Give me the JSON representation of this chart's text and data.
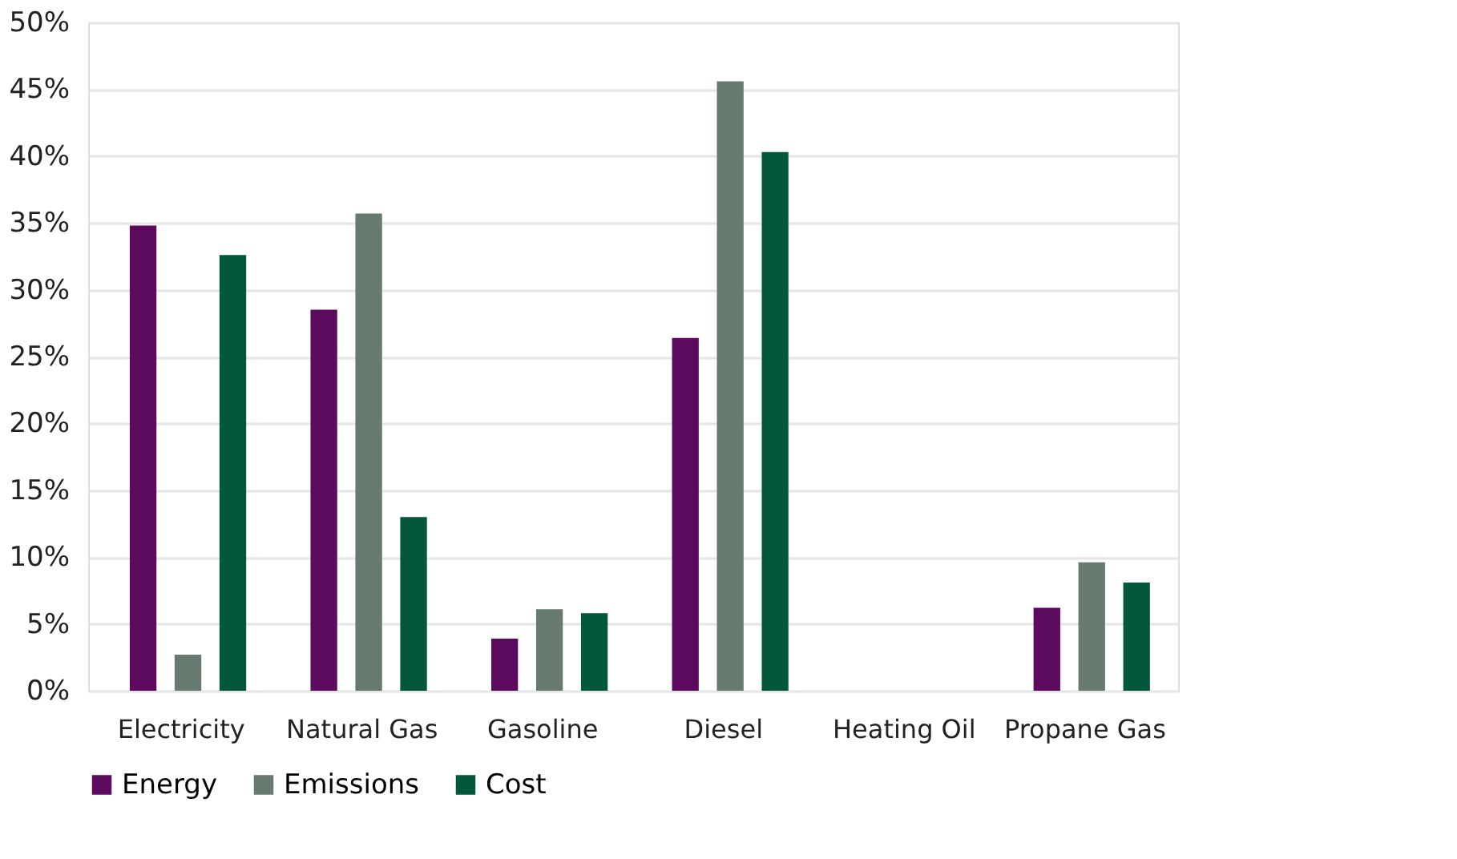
{
  "chart_data": {
    "type": "bar",
    "categories": [
      "Electricity",
      "Natural Gas",
      "Gasoline",
      "Diesel",
      "Heating Oil",
      "Propane Gas"
    ],
    "series": [
      {
        "name": "Energy",
        "color": "#5c0a5e",
        "values": [
          34.8,
          28.5,
          3.9,
          26.4,
          null,
          6.2
        ]
      },
      {
        "name": "Emissions",
        "color": "#677a6f",
        "values": [
          2.7,
          35.7,
          6.1,
          45.6,
          null,
          9.6
        ]
      },
      {
        "name": "Cost",
        "color": "#02573d",
        "values": [
          32.6,
          13.0,
          5.8,
          40.3,
          null,
          8.1
        ]
      }
    ],
    "ylim": [
      0,
      50
    ],
    "yticks": [
      {
        "value": 0,
        "label": "0%"
      },
      {
        "value": 5,
        "label": "5%"
      },
      {
        "value": 10,
        "label": "10%"
      },
      {
        "value": 15,
        "label": "15%"
      },
      {
        "value": 20,
        "label": "20%"
      },
      {
        "value": 25,
        "label": "25%"
      },
      {
        "value": 30,
        "label": "30%"
      },
      {
        "value": 35,
        "label": "35%"
      },
      {
        "value": 40,
        "label": "40%"
      },
      {
        "value": 45,
        "label": "45%"
      },
      {
        "value": 50,
        "label": "50%"
      }
    ],
    "grid": "y",
    "legend": "bottom"
  }
}
